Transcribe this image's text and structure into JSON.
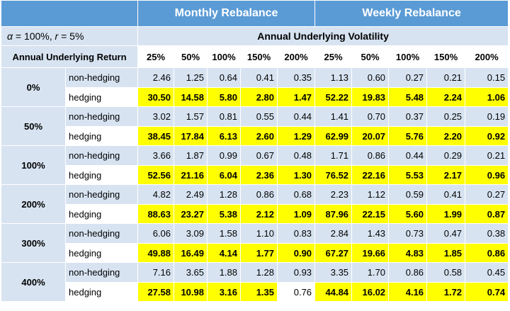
{
  "header": {
    "monthly_title": "Monthly Rebalance",
    "weekly_title": "Weekly Rebalance"
  },
  "params_label": "α = 100%, r = 5%",
  "vol_title": "Annual Underlying Volatility",
  "return_title": "Annual Underlying Return",
  "vol_columns": [
    "25%",
    "50%",
    "100%",
    "150%",
    "200%",
    "25%",
    "50%",
    "100%",
    "150%",
    "200%"
  ],
  "row_labels": {
    "non_hedging": "non-hedging",
    "hedging": "hedging"
  },
  "highlight_color": "#ffff00",
  "groups": [
    {
      "return": "0%",
      "non_hedging": [
        "2.46",
        "1.25",
        "0.64",
        "0.41",
        "0.35",
        "1.13",
        "0.60",
        "0.27",
        "0.21",
        "0.15"
      ],
      "hedging": [
        "30.50",
        "14.58",
        "5.80",
        "2.80",
        "1.47",
        "52.22",
        "19.83",
        "5.48",
        "2.24",
        "1.06"
      ],
      "hedging_highlight": [
        true,
        true,
        true,
        true,
        true,
        true,
        true,
        true,
        true,
        true
      ]
    },
    {
      "return": "50%",
      "non_hedging": [
        "3.02",
        "1.57",
        "0.81",
        "0.55",
        "0.44",
        "1.41",
        "0.70",
        "0.37",
        "0.25",
        "0.19"
      ],
      "hedging": [
        "38.45",
        "17.84",
        "6.13",
        "2.60",
        "1.29",
        "62.99",
        "20.07",
        "5.76",
        "2.20",
        "0.92"
      ],
      "hedging_highlight": [
        true,
        true,
        true,
        true,
        true,
        true,
        true,
        true,
        true,
        true
      ]
    },
    {
      "return": "100%",
      "non_hedging": [
        "3.66",
        "1.87",
        "0.99",
        "0.67",
        "0.48",
        "1.71",
        "0.86",
        "0.44",
        "0.29",
        "0.21"
      ],
      "hedging": [
        "52.56",
        "21.16",
        "6.04",
        "2.36",
        "1.30",
        "76.52",
        "22.16",
        "5.53",
        "2.17",
        "0.96"
      ],
      "hedging_highlight": [
        true,
        true,
        true,
        true,
        true,
        true,
        true,
        true,
        true,
        true
      ]
    },
    {
      "return": "200%",
      "non_hedging": [
        "4.82",
        "2.49",
        "1.28",
        "0.86",
        "0.68",
        "2.23",
        "1.12",
        "0.59",
        "0.41",
        "0.27"
      ],
      "hedging": [
        "88.63",
        "23.27",
        "5.38",
        "2.12",
        "1.09",
        "87.96",
        "22.15",
        "5.60",
        "1.99",
        "0.87"
      ],
      "hedging_highlight": [
        true,
        true,
        true,
        true,
        true,
        true,
        true,
        true,
        true,
        true
      ]
    },
    {
      "return": "300%",
      "non_hedging": [
        "6.06",
        "3.09",
        "1.58",
        "1.10",
        "0.83",
        "2.84",
        "1.43",
        "0.73",
        "0.47",
        "0.38"
      ],
      "hedging": [
        "49.88",
        "16.49",
        "4.14",
        "1.77",
        "0.90",
        "67.27",
        "19.66",
        "4.83",
        "1.85",
        "0.86"
      ],
      "hedging_highlight": [
        true,
        true,
        true,
        true,
        true,
        true,
        true,
        true,
        true,
        true
      ]
    },
    {
      "return": "400%",
      "non_hedging": [
        "7.16",
        "3.65",
        "1.88",
        "1.28",
        "0.93",
        "3.35",
        "1.70",
        "0.86",
        "0.58",
        "0.45"
      ],
      "hedging": [
        "27.58",
        "10.98",
        "3.16",
        "1.35",
        "0.76",
        "44.84",
        "16.02",
        "4.16",
        "1.72",
        "0.74"
      ],
      "hedging_highlight": [
        true,
        true,
        true,
        true,
        false,
        true,
        true,
        true,
        true,
        true
      ]
    }
  ]
}
